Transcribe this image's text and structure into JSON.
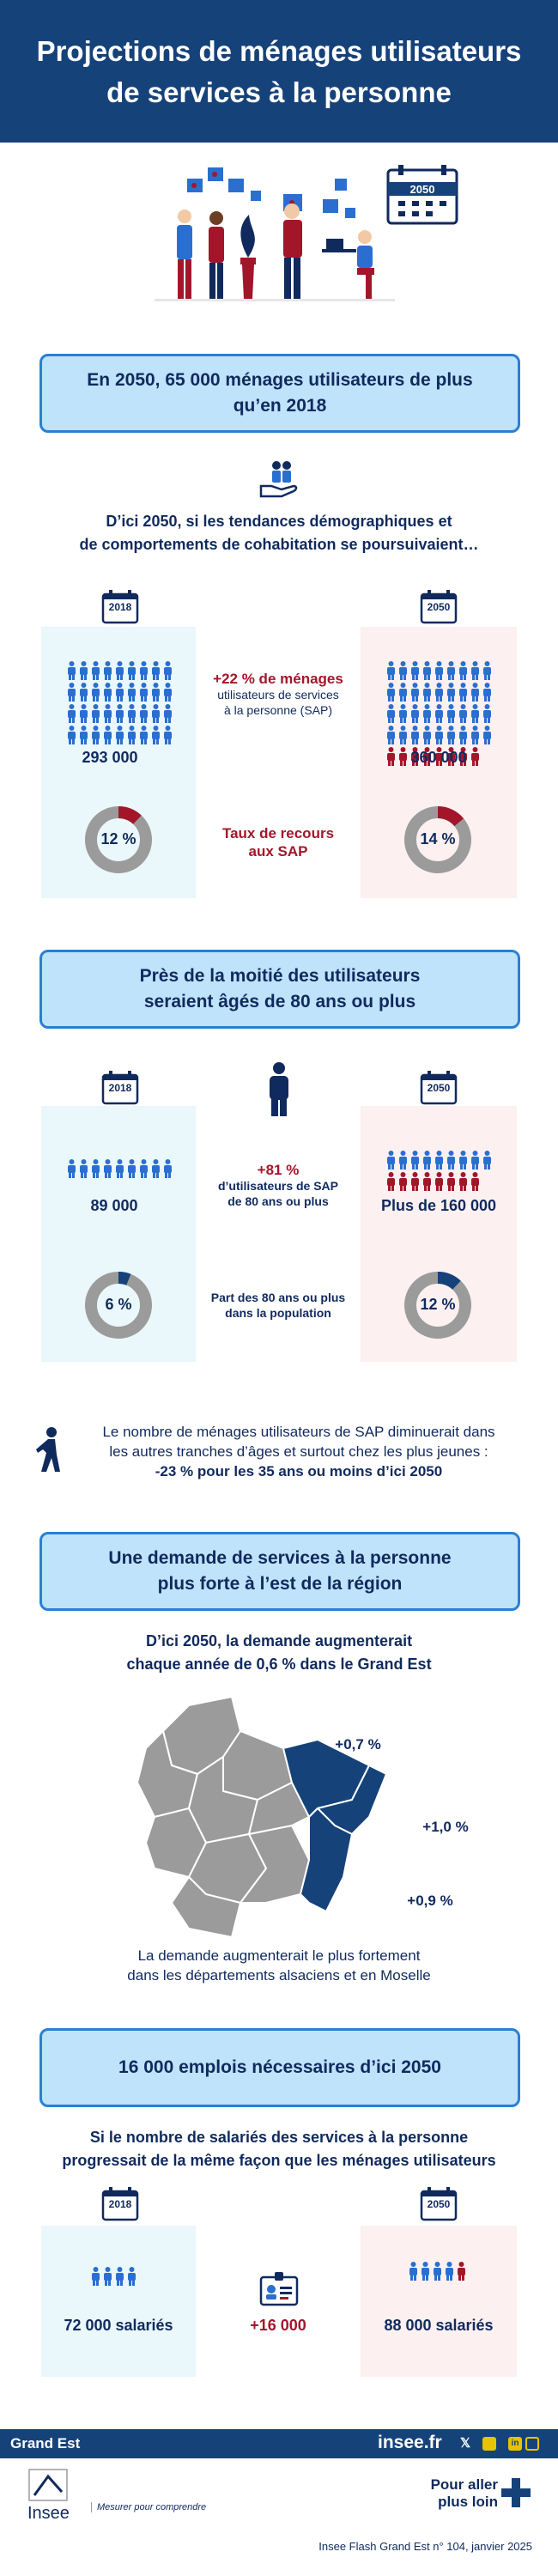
{
  "header": {
    "title_line1": "Projections de ménages utilisateurs",
    "title_line2": "de services à la personne"
  },
  "hero": {
    "calendar_year": "2050"
  },
  "section1": {
    "banner_line1": "En 2050, 65 000 ménages utilisateurs de plus",
    "banner_line2": "qu’en 2018",
    "intro_line1": "D’ici 2050, si les tendances démographiques et",
    "intro_line2": "de comportements de cohabitation se poursuivaient…",
    "year_left": "2018",
    "year_right": "2050",
    "value_left": "293 000",
    "value_right": "360 000",
    "change_label": "+22 % de ménages",
    "change_desc_line1": "utilisateurs de services",
    "change_desc_line2": "à la personne (SAP)",
    "rate_left": "12 %",
    "rate_right": "14 %",
    "rate_label_line1": "Taux de recours",
    "rate_label_line2": "aux SAP",
    "rate_left_value": 12,
    "rate_right_value": 14
  },
  "section2": {
    "banner_line1": "Près de la moitié des utilisateurs",
    "banner_line2": "seraient âgés de 80 ans ou plus",
    "year_left": "2018",
    "year_right": "2050",
    "value_left": "89 000",
    "value_right": "Plus de 160 000",
    "change_label": "+81 %",
    "change_desc_line1": "d’utilisateurs de SAP",
    "change_desc_line2": "de 80 ans ou plus",
    "share_left": "6 %",
    "share_right": "12 %",
    "share_label_line1": "Part des 80 ans ou plus",
    "share_label_line2": "dans la population",
    "share_left_value": 6,
    "share_right_value": 12,
    "note_line1": "Le nombre de ménages utilisateurs de SAP diminuerait dans",
    "note_line2": "les autres tranches d’âges et surtout chez les plus jeunes :",
    "note_line3": "-23 % pour les 35 ans ou moins d’ici 2050"
  },
  "section3": {
    "banner_line1": "Une demande de services à la personne",
    "banner_line2": "plus forte à l’est de la région",
    "intro_line1": "D’ici 2050, la demande augmenterait",
    "intro_line2": "chaque année de 0,6 % dans le Grand Est",
    "map_label_1": "+0,7 %",
    "map_label_2": "+1,0 %",
    "map_label_3": "+0,9 %",
    "caption_line1": "La demande augmenterait le plus fortement",
    "caption_line2": "dans les départements alsaciens et en Moselle"
  },
  "section4": {
    "banner": "16 000 emplois nécessaires d’ici 2050",
    "intro_line1": "Si le nombre de salariés des services à la personne",
    "intro_line2": "progressait de la même façon que les ménages utilisateurs",
    "year_left": "2018",
    "year_right": "2050",
    "value_left": "72 000 salariés",
    "value_right": "88 000 salariés",
    "change": "+16 000"
  },
  "footer": {
    "region": "Grand Est",
    "site": "insee.fr",
    "logo_name": "Insee",
    "logo_tagline": "Mesurer pour comprendre",
    "more_line1": "Pour aller",
    "more_line2": "plus loin",
    "publication": "Insee Flash Grand Est n° 104, janvier 2025"
  },
  "colors": {
    "navy": "#16427a",
    "blue": "#2a6fd0",
    "red": "#a3162a",
    "grey": "#9b9b9b"
  }
}
